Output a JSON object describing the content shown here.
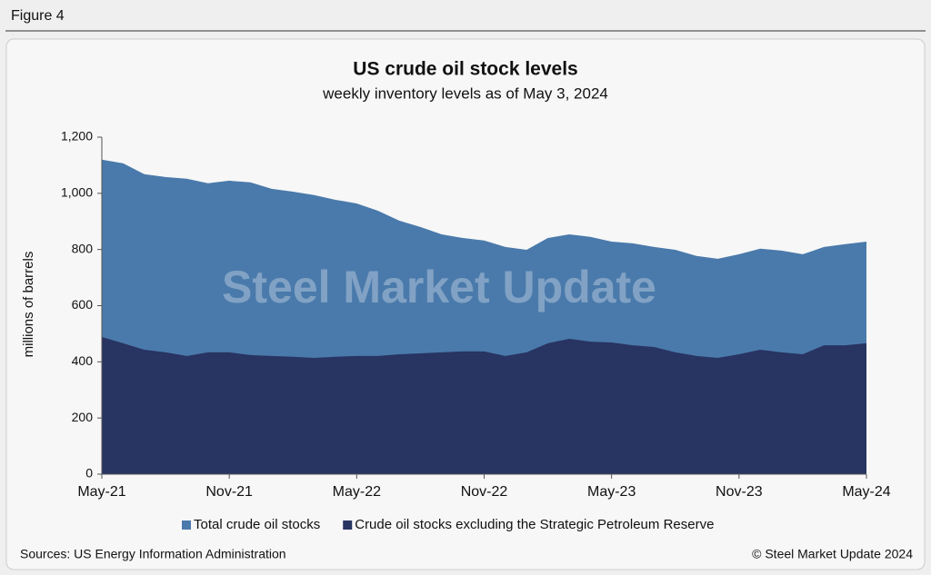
{
  "figure_label": "Figure 4",
  "chart_data": {
    "type": "area",
    "title": "US crude oil stock levels",
    "subtitle": "weekly inventory levels as of May 3, 2024",
    "y_label": "millions of barrels",
    "watermark": "Steel Market Update",
    "categories": [
      "May-21",
      null,
      null,
      null,
      null,
      null,
      "Nov-21",
      null,
      null,
      null,
      null,
      null,
      "May-22",
      null,
      null,
      null,
      null,
      null,
      "Nov-22",
      null,
      null,
      null,
      null,
      null,
      "May-23",
      null,
      null,
      null,
      null,
      null,
      "Nov-23",
      null,
      null,
      null,
      null,
      null,
      "May-24"
    ],
    "series": [
      {
        "name": "Total crude oil stocks",
        "color": "#4a7aab",
        "values": [
          1120,
          1107,
          1068,
          1058,
          1052,
          1036,
          1045,
          1039,
          1016,
          1006,
          994,
          977,
          964,
          938,
          903,
          880,
          854,
          841,
          832,
          809,
          799,
          841,
          854,
          845,
          828,
          822,
          809,
          799,
          777,
          767,
          783,
          803,
          796,
          783,
          809,
          819,
          828
        ]
      },
      {
        "name": "Crude oil stocks excluding the Strategic Petroleum Reserve",
        "color": "#283462",
        "values": [
          489,
          466,
          443,
          434,
          421,
          434,
          434,
          424,
          421,
          418,
          414,
          418,
          421,
          421,
          427,
          430,
          434,
          437,
          437,
          421,
          434,
          466,
          482,
          472,
          469,
          459,
          453,
          434,
          421,
          414,
          427,
          443,
          434,
          427,
          459,
          459,
          466
        ]
      }
    ],
    "ylim": [
      0,
      1200
    ],
    "yticks": [
      0,
      200,
      400,
      600,
      800,
      {
        "value": 1000,
        "label": "1,000"
      },
      {
        "value": 1200,
        "label": "1,200"
      }
    ],
    "legend": "bottom",
    "source": "Sources: US Energy Information Administration",
    "copyright": "© Steel Market Update 2024"
  }
}
